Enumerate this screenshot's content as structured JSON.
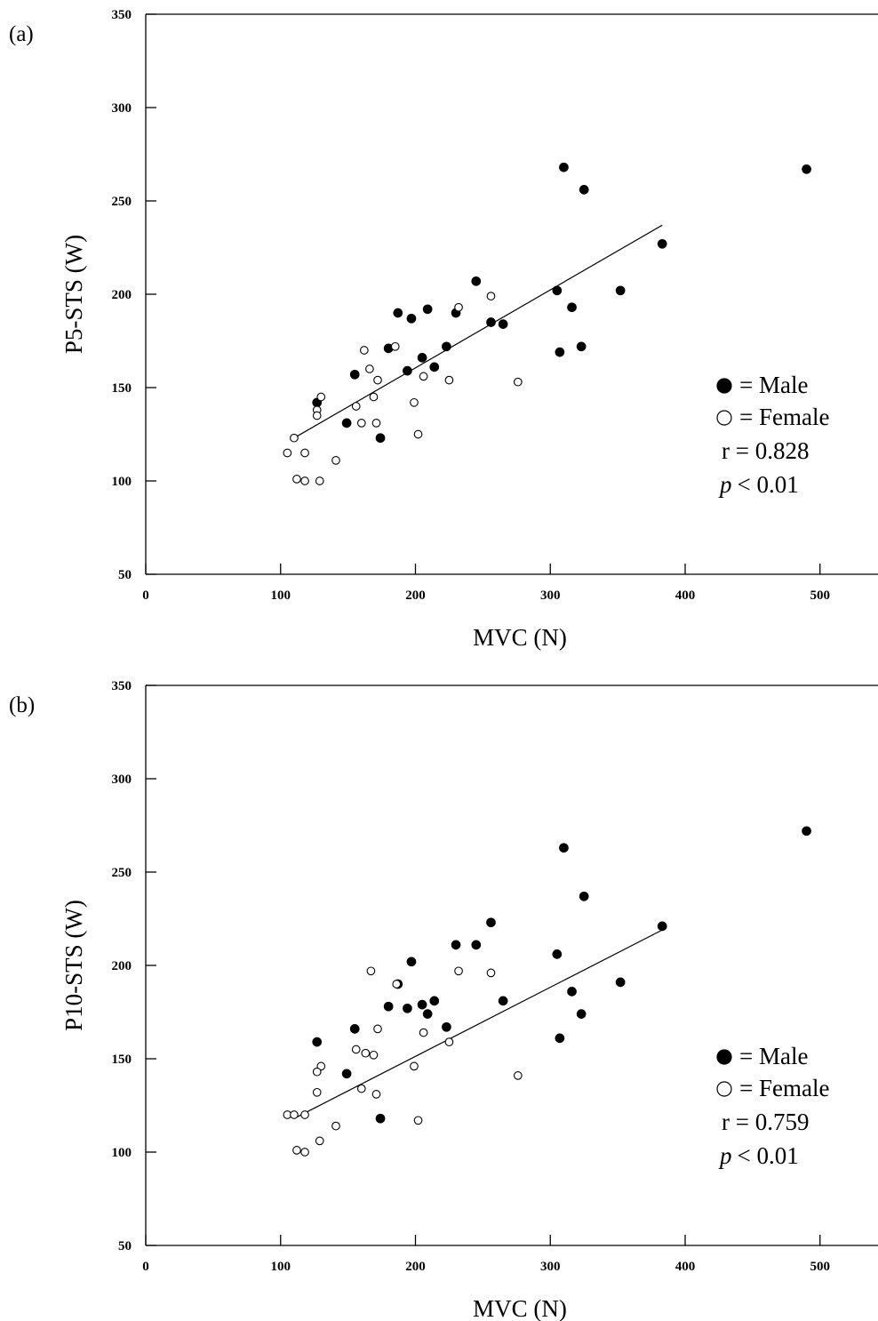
{
  "chart_data": [
    {
      "type": "scatter",
      "panel_label": "(a)",
      "xlabel": "MVC (N)",
      "ylabel": "P5-STS (W)",
      "xlim": [
        0,
        543
      ],
      "ylim": [
        50,
        350
      ],
      "xticks": [
        0,
        100,
        200,
        300,
        400,
        500
      ],
      "yticks": [
        50,
        100,
        150,
        200,
        250,
        300,
        350
      ],
      "series": [
        {
          "name": "= Male",
          "color": "#000000",
          "marker": "filled",
          "x": [
            310,
            325,
            490,
            383,
            245,
            305,
            352,
            187,
            197,
            209,
            230,
            256,
            265,
            316,
            223,
            180,
            323,
            307,
            205,
            214,
            194,
            155,
            127,
            149,
            174
          ],
          "values": [
            268,
            256,
            267,
            227,
            207,
            202,
            202,
            190,
            187,
            192,
            190,
            185,
            184,
            193,
            172,
            171,
            172,
            169,
            166,
            161,
            159,
            157,
            142,
            131,
            123
          ]
        },
        {
          "name": "= Female",
          "color": "#000000",
          "marker": "open",
          "x": [
            256,
            232,
            185,
            162,
            166,
            206,
            225,
            172,
            276,
            130,
            156,
            169,
            199,
            127,
            127,
            160,
            171,
            202,
            110,
            118,
            105,
            141,
            112,
            118,
            129
          ],
          "values": [
            199,
            193,
            172,
            170,
            160,
            156,
            154,
            154,
            153,
            145,
            140,
            145,
            142,
            138,
            135,
            131,
            131,
            125,
            123,
            115,
            115,
            111,
            101,
            100,
            100
          ]
        }
      ],
      "fit": {
        "x": [
          110,
          383
        ],
        "values": [
          123,
          237
        ]
      },
      "r_text": "r = 0.828",
      "stat_symbol": "p",
      "stat_text": "< 0.01"
    },
    {
      "type": "scatter",
      "panel_label": "(b)",
      "xlabel": "MVC (N)",
      "ylabel": "P10-STS (W)",
      "xlim": [
        0,
        543
      ],
      "ylim": [
        50,
        350
      ],
      "xticks": [
        0,
        100,
        200,
        300,
        400,
        500
      ],
      "yticks": [
        50,
        100,
        150,
        200,
        250,
        300,
        350
      ],
      "series": [
        {
          "name": "= Male",
          "color": "#000000",
          "marker": "filled",
          "x": [
            310,
            490,
            325,
            383,
            256,
            230,
            245,
            305,
            197,
            352,
            187,
            316,
            180,
            194,
            205,
            214,
            265,
            209,
            223,
            323,
            155,
            127,
            307,
            149,
            174
          ],
          "values": [
            263,
            272,
            237,
            221,
            223,
            211,
            211,
            206,
            202,
            191,
            190,
            186,
            178,
            177,
            179,
            181,
            181,
            174,
            167,
            174,
            166,
            159,
            161,
            142,
            118
          ]
        },
        {
          "name": "= Female",
          "color": "#000000",
          "marker": "open",
          "x": [
            167,
            232,
            256,
            186,
            172,
            206,
            225,
            156,
            163,
            169,
            199,
            130,
            127,
            276,
            160,
            127,
            171,
            105,
            110,
            118,
            141,
            202,
            129,
            112,
            118
          ],
          "values": [
            197,
            197,
            196,
            190,
            166,
            164,
            159,
            155,
            153,
            152,
            146,
            146,
            143,
            141,
            134,
            132,
            131,
            120,
            120,
            120,
            114,
            117,
            106,
            101,
            100
          ]
        }
      ],
      "fit": {
        "x": [
          110,
          383
        ],
        "values": [
          118,
          219
        ]
      },
      "r_text": "r = 0.759",
      "stat_symbol": "p",
      "stat_text": "< 0.01"
    }
  ]
}
